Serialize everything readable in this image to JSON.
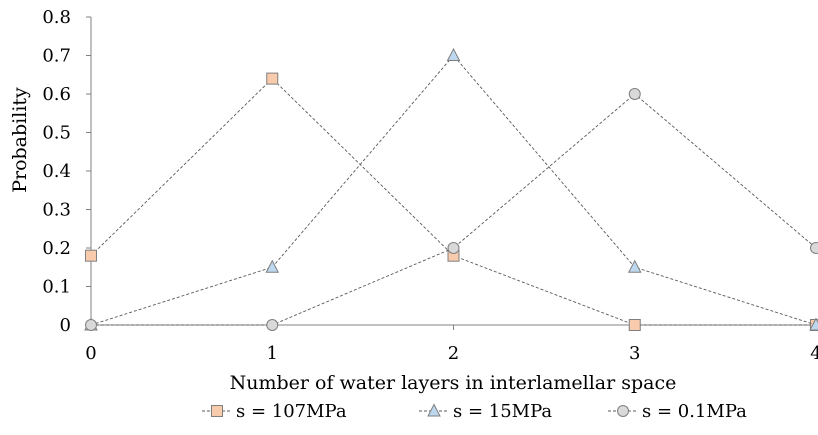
{
  "chart_data": {
    "type": "line",
    "title": "",
    "xlabel": "Number of water layers in interlamellar space",
    "ylabel": "Probability",
    "x": [
      0,
      1,
      2,
      3,
      4
    ],
    "xlim": [
      0,
      4
    ],
    "ylim": [
      0,
      0.8
    ],
    "x_ticks": [
      "0",
      "1",
      "2",
      "3",
      "4"
    ],
    "y_ticks": [
      "0",
      "0.1",
      "0.2",
      "0.3",
      "0.4",
      "0.5",
      "0.6",
      "0.7",
      "0.8"
    ],
    "grid": false,
    "legend_position": "bottom",
    "series": [
      {
        "name": "s = 107MPa",
        "marker": "square",
        "fill": "#f8cbad",
        "stroke": "#7f7f7f",
        "values": [
          0.18,
          0.64,
          0.18,
          0,
          0
        ]
      },
      {
        "name": "s = 15MPa",
        "marker": "triangle",
        "fill": "#bdd7ee",
        "stroke": "#7f7f7f",
        "values": [
          0,
          0.15,
          0.7,
          0.15,
          0
        ]
      },
      {
        "name": "s = 0.1MPa",
        "marker": "circle",
        "fill": "#d9d9d9",
        "stroke": "#7f7f7f",
        "values": [
          0,
          0,
          0.2,
          0.6,
          0.2
        ]
      }
    ]
  }
}
